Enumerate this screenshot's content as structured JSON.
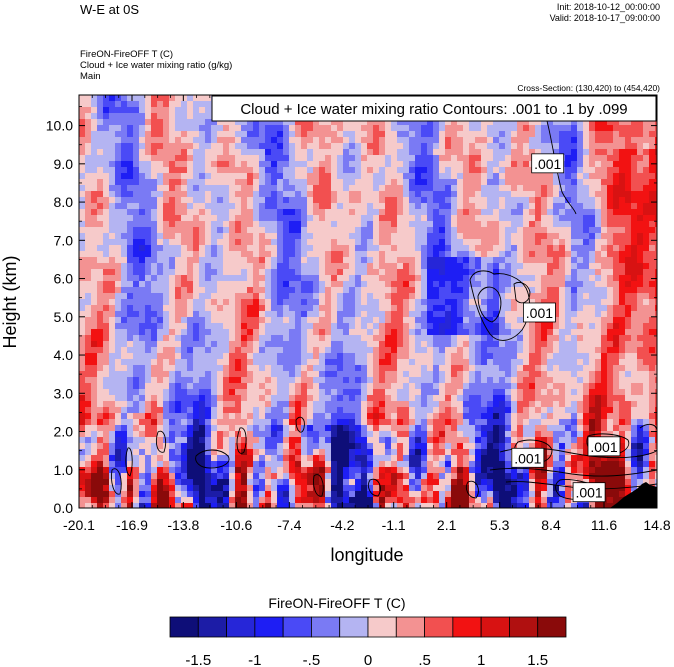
{
  "header": {
    "title": "W-E at 0S",
    "init": "Init: 2018-10-12_00:00:00",
    "valid": "Valid: 2018-10-17_09:00:00",
    "field_line1": "FireON-FireOFF T   (C)",
    "field_line2": "Cloud + Ice water mixing ratio   (g/kg)",
    "field_line3": "Main",
    "cross_section": "Cross-Section: (130,420) to (454,420)"
  },
  "chart_data": {
    "type": "heatmap",
    "title": "FireON-FireOFF T (C) with Cloud + Ice water mixing ratio contours",
    "xlabel": "longitude",
    "ylabel": "Height (km)",
    "xlim": [
      -20.1,
      14.8
    ],
    "ylim": [
      0.0,
      10.8
    ],
    "x_ticks": [
      "-20.1",
      "-16.9",
      "-13.8",
      "-10.6",
      "-7.4",
      "-4.2",
      "-1.1",
      "2.1",
      "5.3",
      "8.4",
      "11.6",
      "14.8"
    ],
    "y_ticks": [
      "0.0",
      "1.0",
      "2.0",
      "3.0",
      "4.0",
      "5.0",
      "6.0",
      "7.0",
      "8.0",
      "9.0",
      "10.0"
    ],
    "contour_annotation": "Cloud + Ice water mixing ratio Contours: .001 to .1 by .099",
    "contour_labels": [
      {
        "text": ".001",
        "lon": 8.2,
        "height": 9.0
      },
      {
        "text": ".001",
        "lon": 7.7,
        "height": 5.1
      },
      {
        "text": ".001",
        "lon": 7.0,
        "height": 1.3
      },
      {
        "text": ".001",
        "lon": 11.6,
        "height": 1.6
      },
      {
        "text": ".001",
        "lon": 10.7,
        "height": 0.4
      }
    ],
    "colorbar": {
      "title": "FireON-FireOFF  T  (C)",
      "tick_labels": [
        "-1.5",
        "-1",
        "-.5",
        "0",
        ".5",
        "1",
        "1.5"
      ],
      "levels": [
        -1.75,
        -1.5,
        -1.25,
        -1.0,
        -0.75,
        -0.5,
        -0.25,
        0,
        0.25,
        0.5,
        0.75,
        1.0,
        1.25,
        1.5,
        1.75
      ],
      "colors": [
        "#0e0e78",
        "#1c1ca6",
        "#2626d8",
        "#1e1ef4",
        "#4a4af6",
        "#7a7af4",
        "#b4b4f2",
        "#f6caca",
        "#f39292",
        "#f25050",
        "#f21212",
        "#d81212",
        "#b01010",
        "#8a0a0a"
      ]
    }
  }
}
